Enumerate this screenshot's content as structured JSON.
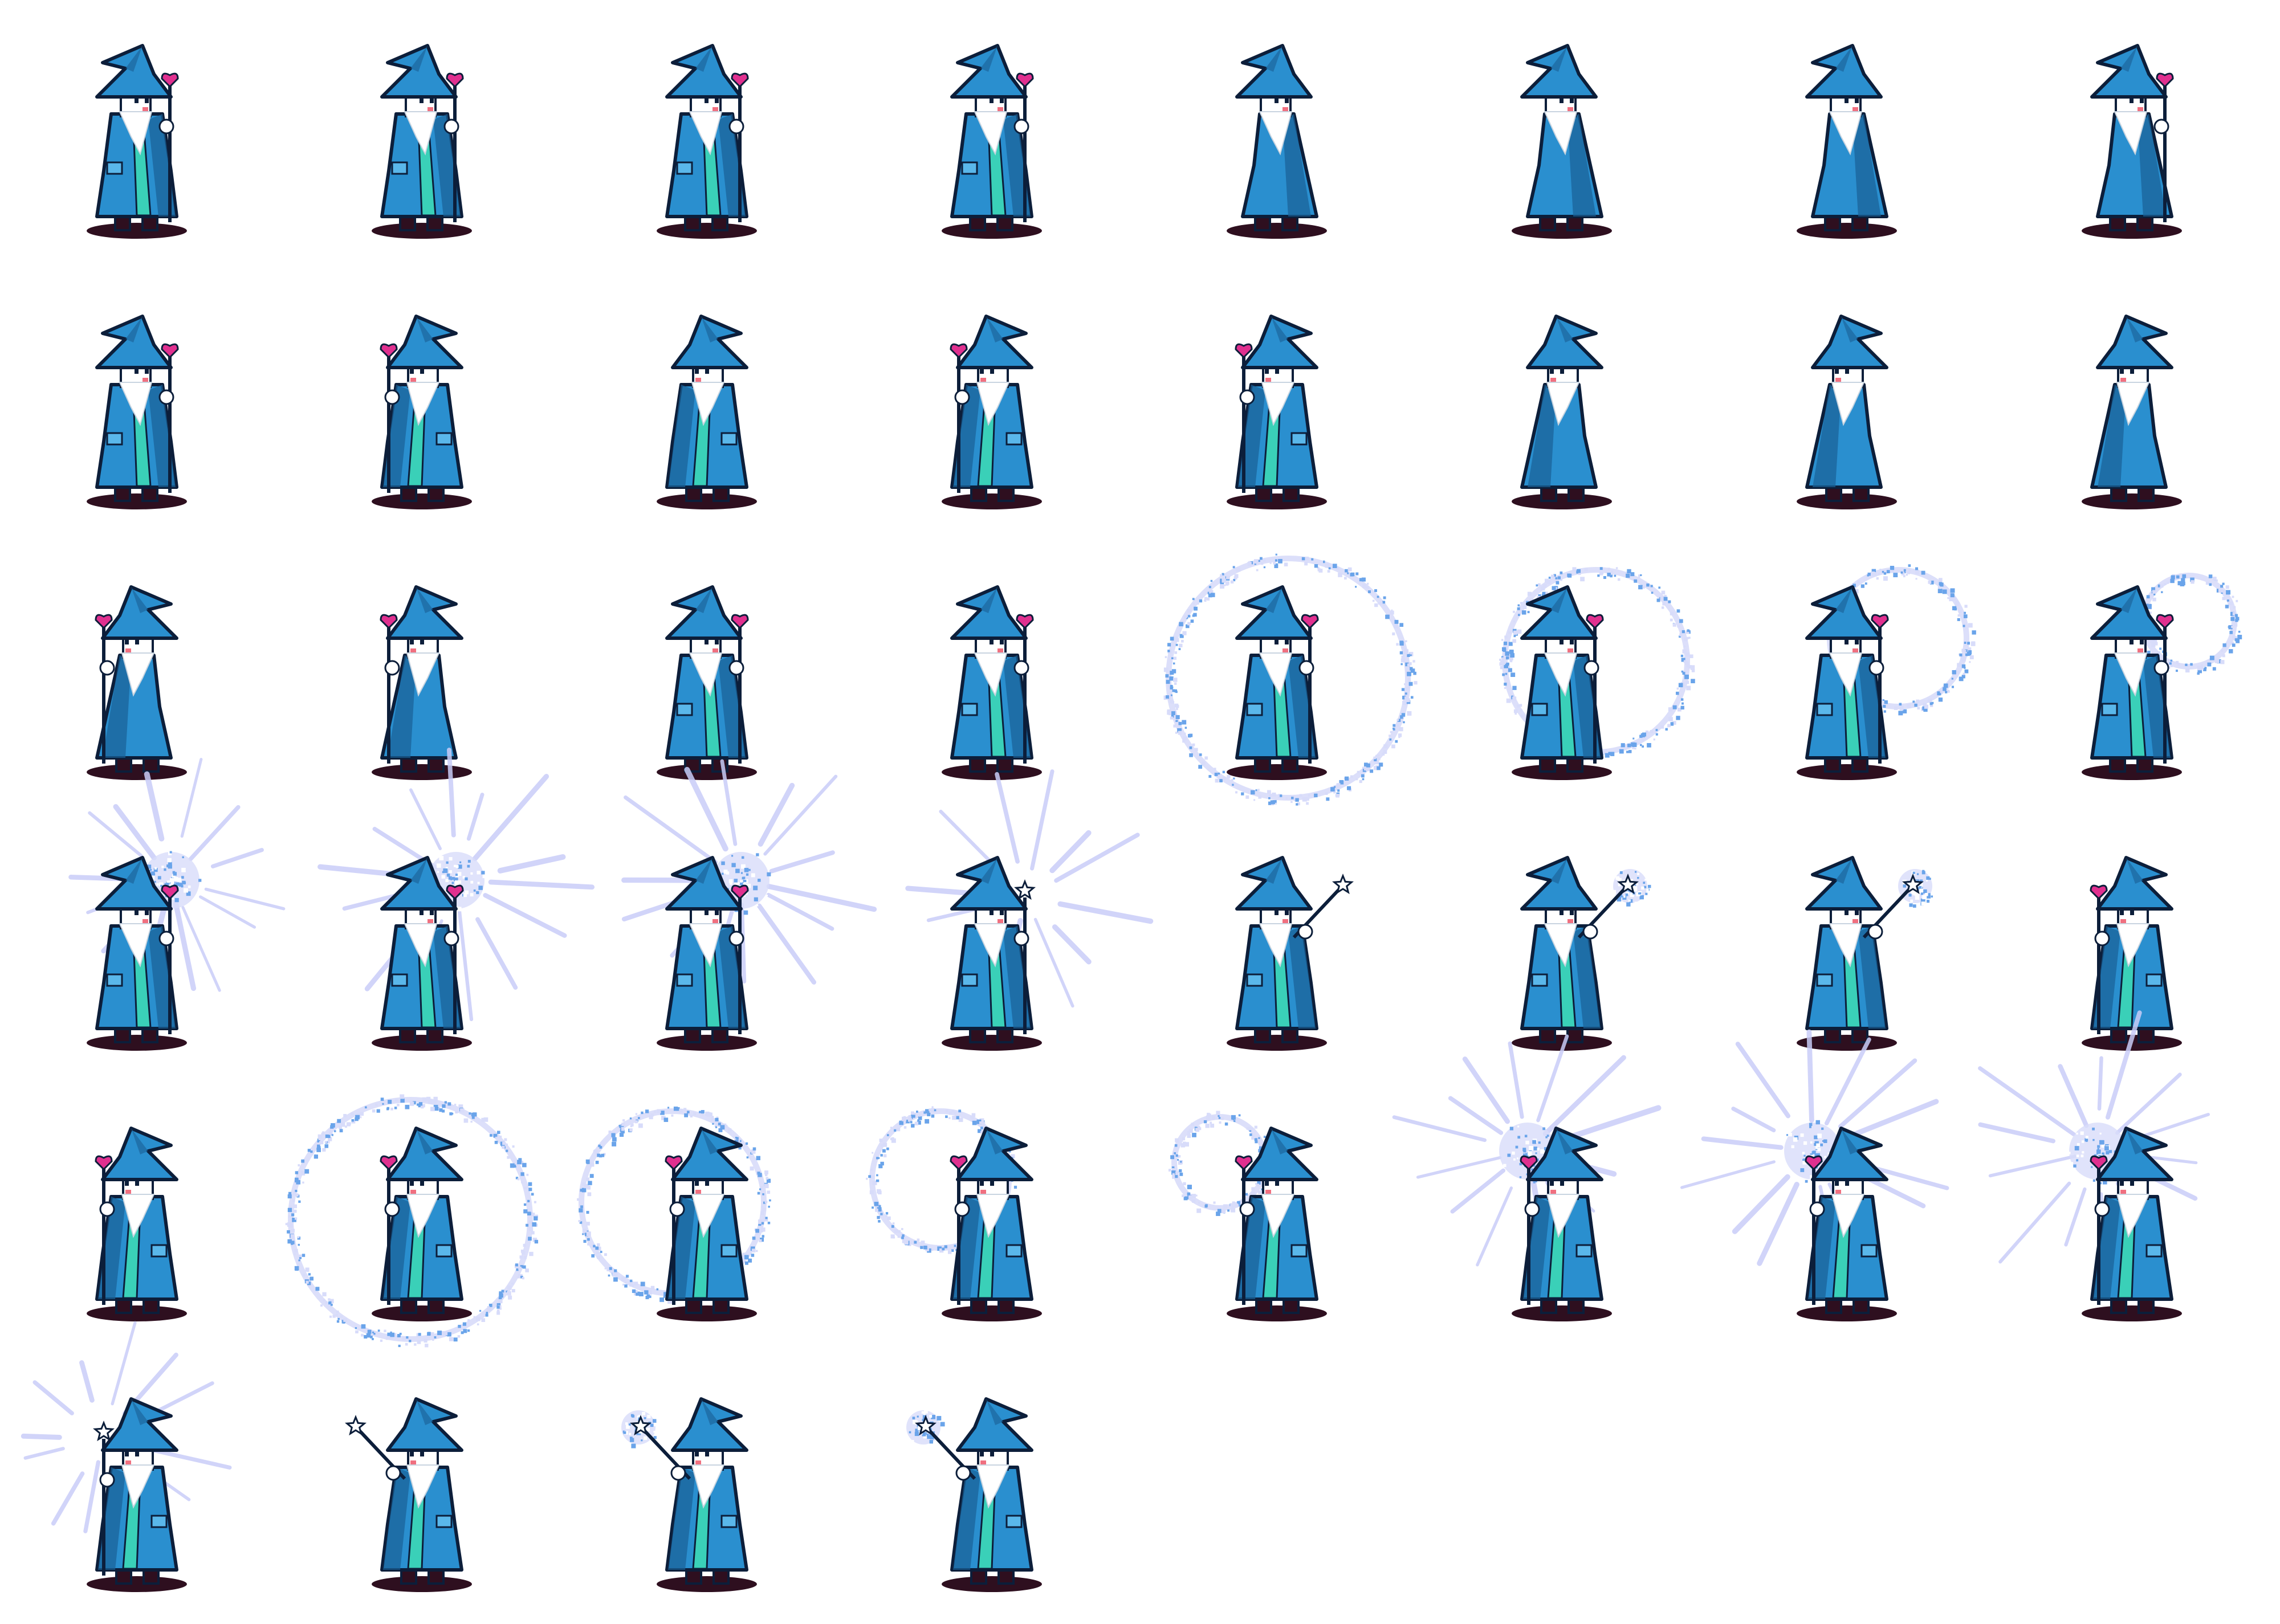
{
  "sheet": {
    "columns": 8,
    "rows": 6,
    "frames": [
      {
        "pose": "idle-front",
        "dir": 1,
        "staff": "heart",
        "fx": "none"
      },
      {
        "pose": "walk-front",
        "dir": 1,
        "staff": "heart",
        "fx": "none"
      },
      {
        "pose": "walk-front",
        "dir": 1,
        "staff": "heart",
        "fx": "none"
      },
      {
        "pose": "walk-front",
        "dir": 1,
        "staff": "heart",
        "fx": "none"
      },
      {
        "pose": "walk-side",
        "dir": 1,
        "staff": "none",
        "fx": "none"
      },
      {
        "pose": "walk-side",
        "dir": 1,
        "staff": "none",
        "fx": "none"
      },
      {
        "pose": "walk-back",
        "dir": 1,
        "staff": "none",
        "fx": "none"
      },
      {
        "pose": "walk-back",
        "dir": 1,
        "staff": "heart",
        "fx": "none"
      },
      {
        "pose": "walk-front",
        "dir": 1,
        "staff": "heart",
        "fx": "none"
      },
      {
        "pose": "idle-front",
        "dir": -1,
        "staff": "heart",
        "fx": "none"
      },
      {
        "pose": "walk-front",
        "dir": -1,
        "staff": "none",
        "fx": "none"
      },
      {
        "pose": "walk-front",
        "dir": -1,
        "staff": "heart",
        "fx": "none"
      },
      {
        "pose": "walk-front",
        "dir": -1,
        "staff": "heart",
        "fx": "none"
      },
      {
        "pose": "walk-side",
        "dir": -1,
        "staff": "none",
        "fx": "none"
      },
      {
        "pose": "walk-side",
        "dir": -1,
        "staff": "none",
        "fx": "none"
      },
      {
        "pose": "walk-back",
        "dir": -1,
        "staff": "none",
        "fx": "none"
      },
      {
        "pose": "walk-back",
        "dir": -1,
        "staff": "heart",
        "fx": "none"
      },
      {
        "pose": "walk-back",
        "dir": -1,
        "staff": "heart",
        "fx": "none"
      },
      {
        "pose": "idle-front",
        "dir": 1,
        "staff": "heart",
        "fx": "none"
      },
      {
        "pose": "idle-front",
        "dir": 1,
        "staff": "heart",
        "fx": "none"
      },
      {
        "pose": "cast",
        "dir": 1,
        "staff": "heart",
        "fx": "ring-large"
      },
      {
        "pose": "cast",
        "dir": 1,
        "staff": "heart",
        "fx": "ring-medium"
      },
      {
        "pose": "cast",
        "dir": 1,
        "staff": "heart",
        "fx": "ring-small"
      },
      {
        "pose": "cast",
        "dir": 1,
        "staff": "heart",
        "fx": "ring-tiny"
      },
      {
        "pose": "cast",
        "dir": 1,
        "staff": "heart",
        "fx": "burst"
      },
      {
        "pose": "cast",
        "dir": 1,
        "staff": "heart",
        "fx": "burst"
      },
      {
        "pose": "cast",
        "dir": 1,
        "staff": "heart",
        "fx": "burst"
      },
      {
        "pose": "cast",
        "dir": 1,
        "staff": "star",
        "fx": "rays"
      },
      {
        "pose": "point",
        "dir": 1,
        "staff": "star",
        "fx": "none"
      },
      {
        "pose": "point",
        "dir": 1,
        "staff": "star",
        "fx": "glow"
      },
      {
        "pose": "point",
        "dir": 1,
        "staff": "star",
        "fx": "glow"
      },
      {
        "pose": "idle-front",
        "dir": -1,
        "staff": "heart",
        "fx": "none"
      },
      {
        "pose": "idle-front",
        "dir": -1,
        "staff": "heart",
        "fx": "none"
      },
      {
        "pose": "cast",
        "dir": -1,
        "staff": "heart",
        "fx": "ring-large"
      },
      {
        "pose": "cast",
        "dir": -1,
        "staff": "heart",
        "fx": "ring-medium"
      },
      {
        "pose": "cast",
        "dir": -1,
        "staff": "heart",
        "fx": "ring-small"
      },
      {
        "pose": "cast",
        "dir": -1,
        "staff": "heart",
        "fx": "ring-tiny"
      },
      {
        "pose": "cast",
        "dir": -1,
        "staff": "heart",
        "fx": "burst"
      },
      {
        "pose": "cast",
        "dir": -1,
        "staff": "heart",
        "fx": "burst"
      },
      {
        "pose": "cast",
        "dir": -1,
        "staff": "heart",
        "fx": "burst"
      },
      {
        "pose": "idle-front",
        "dir": -1,
        "staff": "star",
        "fx": "rays"
      },
      {
        "pose": "point",
        "dir": -1,
        "staff": "star",
        "fx": "none"
      },
      {
        "pose": "point",
        "dir": -1,
        "staff": "star",
        "fx": "glow"
      },
      {
        "pose": "point",
        "dir": -1,
        "staff": "star",
        "fx": "glow"
      }
    ]
  },
  "colors": {
    "robe": "#2a8fcf",
    "robe_dark": "#1a5f95",
    "robe_light": "#5ab7ea",
    "lining": "#3ad0b8",
    "outline": "#0c1e3a",
    "beard": "#ffffff",
    "face": "#ffffff",
    "blush": "#f07080",
    "staff_heart": "#e0308f",
    "staff_star": "#ffffff",
    "shadow": "#2e0f1f",
    "magic": "#6aa4ea",
    "magic_light": "#d8dcfa",
    "rays": "#c9cdf8"
  },
  "icons": {
    "character": "wizard-sprite-icon",
    "staff_heart": "heart-staff-icon",
    "staff_star": "star-staff-icon",
    "spell_ring": "magic-ring-icon",
    "spell_burst": "magic-burst-icon"
  }
}
